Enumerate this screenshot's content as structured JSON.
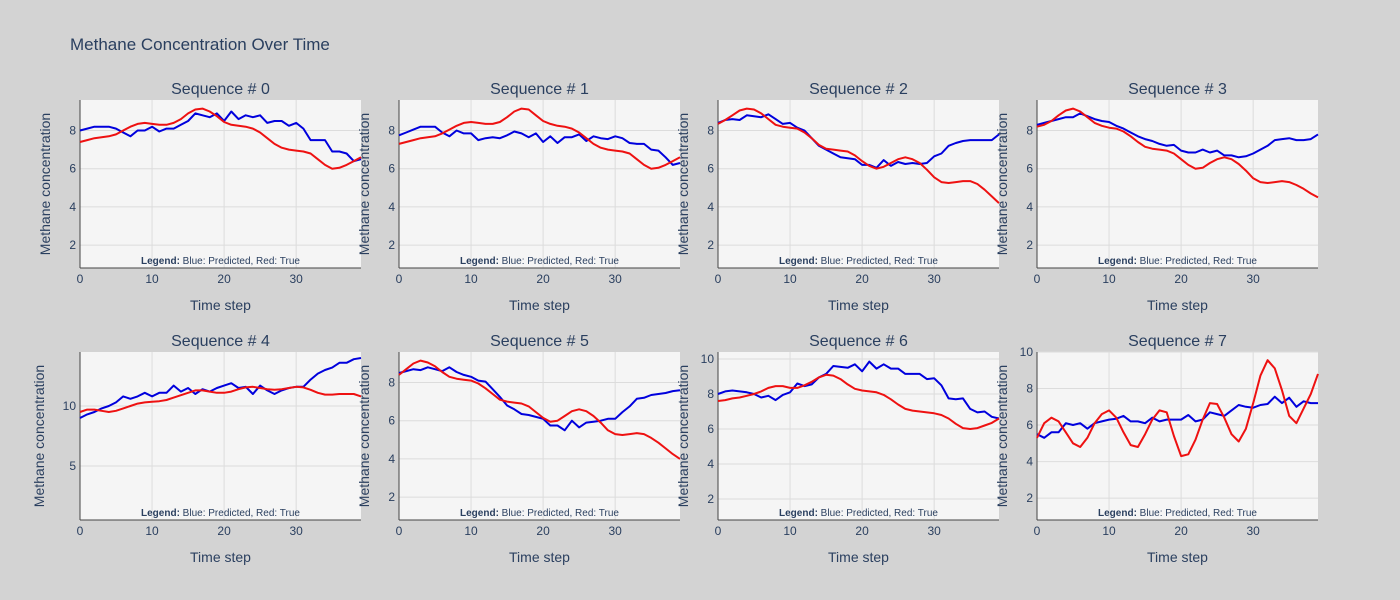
{
  "title": "Methane Concentration Over Time",
  "colors": {
    "background": "#d3d3d3",
    "plot_background": "#f5f5f5",
    "grid": "#dcdcdc",
    "text": "#2a3f5f",
    "predicted": "#0000dd",
    "true": "#ee1111"
  },
  "chart_data": [
    {
      "type": "line",
      "title": "Sequence # 0",
      "xlabel": "Time step",
      "ylabel": "Methane concentration",
      "xlim": [
        0,
        39
      ],
      "ylim": [
        0.8,
        9.6
      ],
      "xticks": [
        0,
        10,
        20,
        30
      ],
      "yticks": [
        2,
        4,
        6,
        8
      ],
      "legend_bold": "Legend:",
      "legend_text": " Blue: Predicted, Red: True",
      "series": [
        {
          "color": "#0000dd",
          "values": [
            8.0,
            8.1,
            8.2,
            8.2,
            8.2,
            8.1,
            7.9,
            7.7,
            8.0,
            8.0,
            8.2,
            7.95,
            8.1,
            8.1,
            8.3,
            8.5,
            8.9,
            8.8,
            8.7,
            8.9,
            8.5,
            9.0,
            8.6,
            8.8,
            8.7,
            8.8,
            8.4,
            8.5,
            8.5,
            8.25,
            8.4,
            8.1,
            7.5,
            7.5,
            7.5,
            6.9,
            6.9,
            6.8,
            6.4,
            6.5
          ]
        },
        {
          "color": "#ee1111",
          "values": [
            7.4,
            7.5,
            7.6,
            7.65,
            7.7,
            7.8,
            8.0,
            8.2,
            8.35,
            8.4,
            8.35,
            8.3,
            8.3,
            8.4,
            8.6,
            8.9,
            9.1,
            9.15,
            9.0,
            8.75,
            8.45,
            8.3,
            8.25,
            8.2,
            8.1,
            7.9,
            7.6,
            7.3,
            7.1,
            7.0,
            6.95,
            6.9,
            6.8,
            6.5,
            6.2,
            6.0,
            6.05,
            6.2,
            6.4,
            6.6
          ]
        }
      ]
    },
    {
      "type": "line",
      "title": "Sequence # 1",
      "xlabel": "Time step",
      "ylabel": "Methane concentration",
      "xlim": [
        0,
        39
      ],
      "ylim": [
        0.8,
        9.6
      ],
      "xticks": [
        0,
        10,
        20,
        30
      ],
      "yticks": [
        2,
        4,
        6,
        8
      ],
      "legend_bold": "Legend:",
      "legend_text": " Blue: Predicted, Red: True",
      "series": [
        {
          "color": "#0000dd",
          "values": [
            7.75,
            7.9,
            8.05,
            8.2,
            8.2,
            8.2,
            7.9,
            7.7,
            8.0,
            7.85,
            7.85,
            7.5,
            7.6,
            7.65,
            7.6,
            7.75,
            7.95,
            7.85,
            7.65,
            7.85,
            7.4,
            7.7,
            7.35,
            7.65,
            7.65,
            7.8,
            7.45,
            7.7,
            7.6,
            7.55,
            7.7,
            7.6,
            7.35,
            7.3,
            7.3,
            7.0,
            6.95,
            6.6,
            6.2,
            6.3
          ]
        },
        {
          "color": "#ee1111",
          "values": [
            7.3,
            7.4,
            7.5,
            7.6,
            7.65,
            7.7,
            7.85,
            8.05,
            8.25,
            8.4,
            8.45,
            8.4,
            8.35,
            8.35,
            8.45,
            8.7,
            9.0,
            9.15,
            9.1,
            8.8,
            8.5,
            8.35,
            8.25,
            8.2,
            8.1,
            7.9,
            7.6,
            7.3,
            7.1,
            7.0,
            6.95,
            6.9,
            6.8,
            6.5,
            6.2,
            6.0,
            6.05,
            6.2,
            6.4,
            6.6
          ]
        }
      ]
    },
    {
      "type": "line",
      "title": "Sequence # 2",
      "xlabel": "Time step",
      "ylabel": "Methane concentration",
      "xlim": [
        0,
        39
      ],
      "ylim": [
        0.8,
        9.6
      ],
      "xticks": [
        0,
        10,
        20,
        30
      ],
      "yticks": [
        2,
        4,
        6,
        8
      ],
      "legend_bold": "Legend:",
      "legend_text": " Blue: Predicted, Red: True",
      "series": [
        {
          "color": "#0000dd",
          "values": [
            8.4,
            8.55,
            8.6,
            8.55,
            8.8,
            8.75,
            8.7,
            8.85,
            8.6,
            8.35,
            8.4,
            8.15,
            8.0,
            7.6,
            7.2,
            7.0,
            6.8,
            6.6,
            6.55,
            6.5,
            6.2,
            6.2,
            6.05,
            6.45,
            6.15,
            6.35,
            6.25,
            6.3,
            6.25,
            6.3,
            6.65,
            6.8,
            7.2,
            7.35,
            7.45,
            7.5,
            7.5,
            7.5,
            7.5,
            7.8
          ]
        },
        {
          "color": "#ee1111",
          "values": [
            8.35,
            8.55,
            8.8,
            9.05,
            9.15,
            9.1,
            8.9,
            8.6,
            8.3,
            8.2,
            8.15,
            8.1,
            7.9,
            7.6,
            7.25,
            7.05,
            7.0,
            6.95,
            6.9,
            6.7,
            6.4,
            6.15,
            6.0,
            6.1,
            6.3,
            6.5,
            6.6,
            6.5,
            6.3,
            5.95,
            5.55,
            5.3,
            5.25,
            5.3,
            5.35,
            5.35,
            5.2,
            4.9,
            4.55,
            4.2
          ]
        }
      ]
    },
    {
      "type": "line",
      "title": "Sequence # 3",
      "xlabel": "Time step",
      "ylabel": "Methane concentration",
      "xlim": [
        0,
        39
      ],
      "ylim": [
        0.8,
        9.6
      ],
      "xticks": [
        0,
        10,
        20,
        30
      ],
      "yticks": [
        2,
        4,
        6,
        8
      ],
      "legend_bold": "Legend:",
      "legend_text": " Blue: Predicted, Red: True",
      "series": [
        {
          "color": "#0000dd",
          "values": [
            8.3,
            8.4,
            8.5,
            8.6,
            8.7,
            8.7,
            8.9,
            8.75,
            8.6,
            8.5,
            8.45,
            8.25,
            8.1,
            7.9,
            7.7,
            7.55,
            7.45,
            7.3,
            7.2,
            7.25,
            6.95,
            6.85,
            6.85,
            7.0,
            6.85,
            6.95,
            6.7,
            6.7,
            6.6,
            6.65,
            6.8,
            7.0,
            7.2,
            7.5,
            7.55,
            7.6,
            7.5,
            7.5,
            7.55,
            7.8
          ]
        },
        {
          "color": "#ee1111",
          "values": [
            8.2,
            8.3,
            8.5,
            8.8,
            9.05,
            9.15,
            9.0,
            8.7,
            8.4,
            8.25,
            8.15,
            8.1,
            7.95,
            7.7,
            7.4,
            7.15,
            7.05,
            7.0,
            6.95,
            6.8,
            6.5,
            6.2,
            6.0,
            6.05,
            6.3,
            6.5,
            6.6,
            6.5,
            6.25,
            5.9,
            5.5,
            5.3,
            5.25,
            5.3,
            5.35,
            5.3,
            5.15,
            4.95,
            4.7,
            4.5
          ]
        }
      ]
    },
    {
      "type": "line",
      "title": "Sequence # 4",
      "xlabel": "Time step",
      "ylabel": "Methane concentration",
      "xlim": [
        0,
        39
      ],
      "ylim": [
        0.5,
        14.5
      ],
      "xticks": [
        0,
        10,
        20,
        30
      ],
      "yticks": [
        5,
        10
      ],
      "legend_bold": "Legend:",
      "legend_text": " Blue: Predicted, Red: True",
      "series": [
        {
          "color": "#0000dd",
          "values": [
            9.0,
            9.3,
            9.5,
            9.8,
            10.0,
            10.3,
            10.8,
            10.6,
            10.8,
            11.1,
            10.8,
            11.1,
            11.1,
            11.7,
            11.2,
            11.5,
            11.0,
            11.4,
            11.2,
            11.5,
            11.7,
            11.9,
            11.5,
            11.6,
            11.0,
            11.7,
            11.3,
            11.0,
            11.3,
            11.5,
            11.6,
            11.6,
            12.2,
            12.7,
            13.0,
            13.2,
            13.6,
            13.6,
            13.9,
            14.0
          ]
        },
        {
          "color": "#ee1111",
          "values": [
            9.5,
            9.7,
            9.7,
            9.6,
            9.5,
            9.6,
            9.8,
            10.0,
            10.2,
            10.3,
            10.35,
            10.4,
            10.5,
            10.7,
            10.9,
            11.1,
            11.3,
            11.3,
            11.2,
            11.1,
            11.1,
            11.2,
            11.4,
            11.55,
            11.6,
            11.5,
            11.4,
            11.35,
            11.4,
            11.5,
            11.6,
            11.55,
            11.35,
            11.1,
            10.95,
            10.95,
            11.0,
            11.0,
            11.0,
            10.8
          ]
        }
      ]
    },
    {
      "type": "line",
      "title": "Sequence # 5",
      "xlabel": "Time step",
      "ylabel": "Methane concentration",
      "xlim": [
        0,
        39
      ],
      "ylim": [
        0.8,
        9.6
      ],
      "xticks": [
        0,
        10,
        20,
        30
      ],
      "yticks": [
        2,
        4,
        6,
        8
      ],
      "legend_bold": "Legend:",
      "legend_text": " Blue: Predicted, Red: True",
      "series": [
        {
          "color": "#0000dd",
          "values": [
            8.5,
            8.6,
            8.7,
            8.65,
            8.8,
            8.7,
            8.6,
            8.8,
            8.55,
            8.4,
            8.3,
            8.1,
            8.05,
            7.65,
            7.25,
            6.8,
            6.6,
            6.35,
            6.3,
            6.2,
            6.1,
            5.75,
            5.75,
            5.5,
            6.0,
            5.65,
            5.9,
            5.95,
            6.0,
            6.1,
            6.1,
            6.45,
            6.75,
            7.15,
            7.2,
            7.35,
            7.4,
            7.45,
            7.55,
            7.6
          ]
        },
        {
          "color": "#ee1111",
          "values": [
            8.4,
            8.7,
            9.0,
            9.15,
            9.05,
            8.85,
            8.55,
            8.3,
            8.2,
            8.15,
            8.1,
            7.95,
            7.7,
            7.4,
            7.1,
            7.0,
            6.95,
            6.9,
            6.75,
            6.45,
            6.15,
            5.95,
            6.0,
            6.25,
            6.5,
            6.6,
            6.5,
            6.25,
            5.9,
            5.5,
            5.3,
            5.25,
            5.3,
            5.35,
            5.3,
            5.1,
            4.85,
            4.55,
            4.25,
            4.0
          ]
        }
      ]
    },
    {
      "type": "line",
      "title": "Sequence # 6",
      "xlabel": "Time step",
      "ylabel": "Methane concentration",
      "xlim": [
        0,
        39
      ],
      "ylim": [
        0.8,
        10.4
      ],
      "xticks": [
        0,
        10,
        20,
        30
      ],
      "yticks": [
        2,
        4,
        6,
        8,
        10
      ],
      "legend_bold": "Legend:",
      "legend_text": " Blue: Predicted, Red: True",
      "series": [
        {
          "color": "#0000dd",
          "values": [
            8.0,
            8.15,
            8.2,
            8.15,
            8.1,
            8.0,
            7.8,
            7.9,
            7.65,
            7.95,
            8.1,
            8.6,
            8.45,
            8.55,
            8.95,
            9.15,
            9.6,
            9.55,
            9.5,
            9.7,
            9.3,
            9.85,
            9.45,
            9.7,
            9.45,
            9.45,
            9.15,
            9.15,
            9.15,
            8.85,
            8.9,
            8.5,
            7.75,
            7.7,
            7.75,
            7.15,
            6.95,
            7.0,
            6.7,
            6.6
          ]
        },
        {
          "color": "#ee1111",
          "values": [
            7.6,
            7.65,
            7.75,
            7.8,
            7.9,
            8.0,
            8.15,
            8.35,
            8.45,
            8.45,
            8.35,
            8.35,
            8.5,
            8.7,
            8.95,
            9.1,
            9.05,
            8.85,
            8.55,
            8.3,
            8.2,
            8.15,
            8.1,
            7.95,
            7.7,
            7.4,
            7.15,
            7.05,
            7.0,
            6.95,
            6.9,
            6.8,
            6.6,
            6.3,
            6.05,
            6.0,
            6.05,
            6.2,
            6.35,
            6.6
          ]
        }
      ]
    },
    {
      "type": "line",
      "title": "Sequence # 7",
      "xlabel": "Time step",
      "ylabel": "Methane concentration",
      "xlim": [
        0,
        39
      ],
      "ylim": [
        0.8,
        10.0
      ],
      "xticks": [
        0,
        10,
        20,
        30
      ],
      "yticks": [
        2,
        4,
        6,
        8,
        10
      ],
      "legend_bold": "Legend:",
      "legend_text": " Blue: Predicted, Red: True",
      "series": [
        {
          "color": "#0000dd",
          "values": [
            5.5,
            5.3,
            5.6,
            5.6,
            6.1,
            6.0,
            6.1,
            5.8,
            6.1,
            6.2,
            6.3,
            6.35,
            6.5,
            6.2,
            6.2,
            6.1,
            6.4,
            6.2,
            6.3,
            6.3,
            6.3,
            6.55,
            6.2,
            6.3,
            6.7,
            6.6,
            6.5,
            6.8,
            7.1,
            7.0,
            6.95,
            7.1,
            7.15,
            7.55,
            7.2,
            7.5,
            7.0,
            7.3,
            7.2,
            7.2
          ]
        },
        {
          "color": "#ee1111",
          "values": [
            5.3,
            6.1,
            6.4,
            6.2,
            5.6,
            5.0,
            4.8,
            5.3,
            6.1,
            6.6,
            6.8,
            6.4,
            5.6,
            4.9,
            4.8,
            5.5,
            6.3,
            6.8,
            6.7,
            5.4,
            4.3,
            4.4,
            5.2,
            6.3,
            7.2,
            7.15,
            6.4,
            5.5,
            5.1,
            5.8,
            7.2,
            8.7,
            9.55,
            9.1,
            7.9,
            6.5,
            6.1,
            6.9,
            7.7,
            8.8
          ]
        }
      ]
    }
  ]
}
